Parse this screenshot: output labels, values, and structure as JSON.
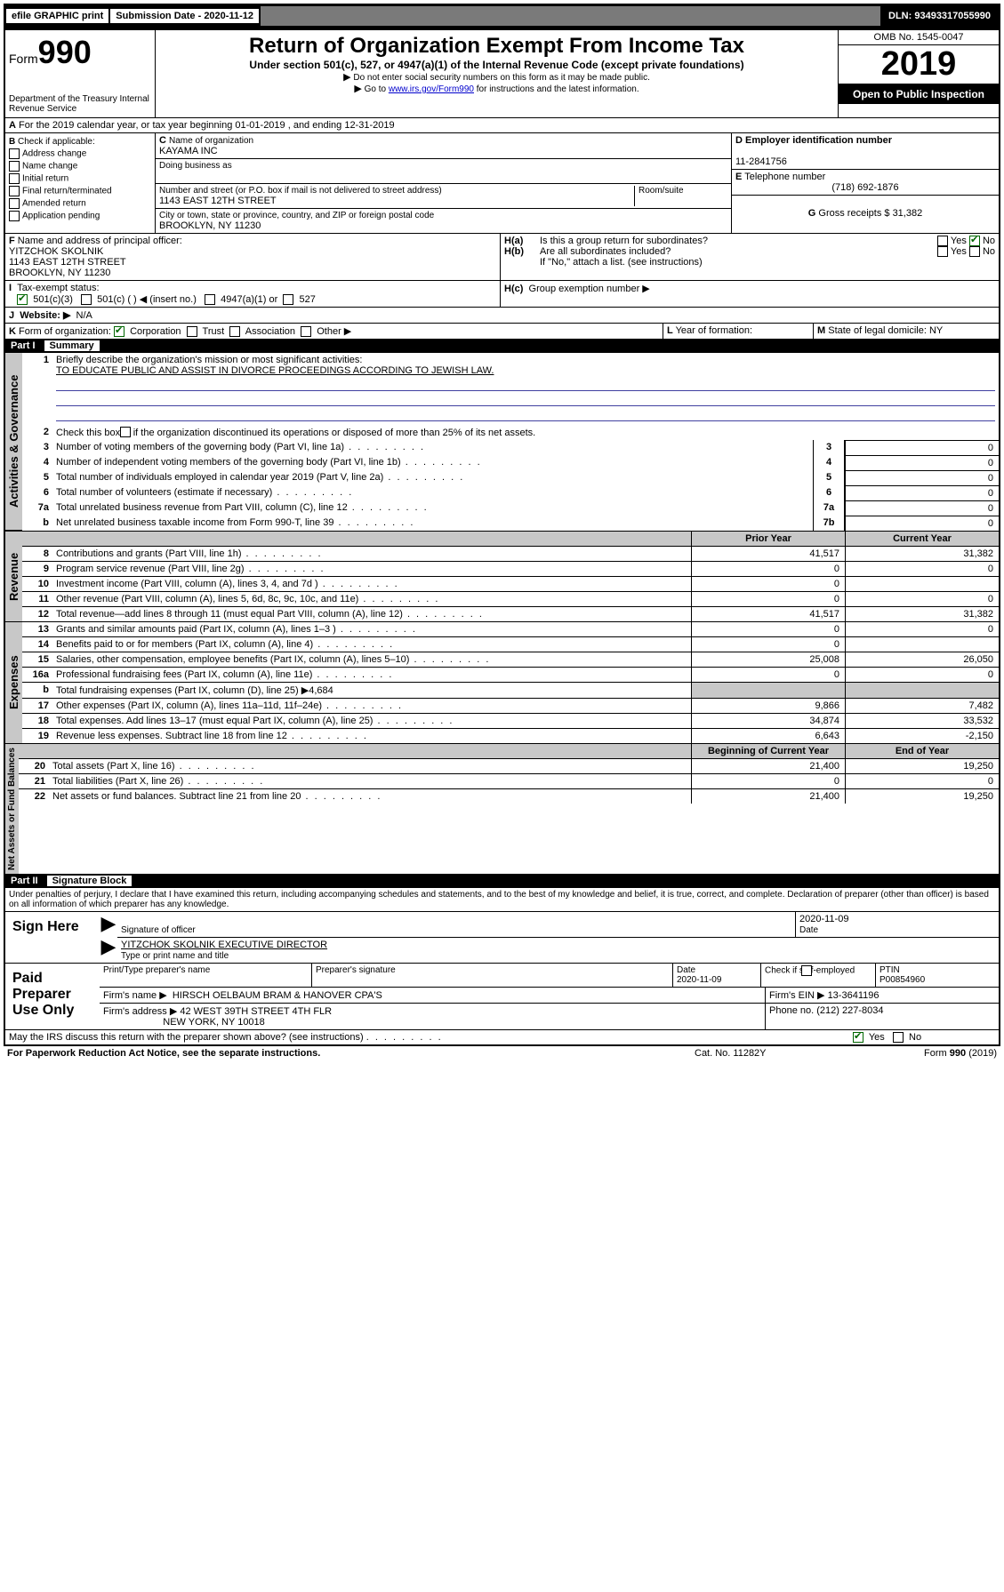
{
  "topbar": {
    "efile": "efile GRAPHIC print",
    "sub_lbl": "Submission Date - 2020-11-12",
    "dln": "DLN: 93493317055990"
  },
  "header": {
    "form": "Form",
    "formno": "990",
    "dept": "Department of the Treasury\nInternal Revenue Service",
    "title": "Return of Organization Exempt From Income Tax",
    "sub": "Under section 501(c), 527, or 4947(a)(1) of the Internal Revenue Code (except private foundations)",
    "note1": "Do not enter social security numbers on this form as it may be made public.",
    "note2_a": "Go to ",
    "note2_link": "www.irs.gov/Form990",
    "note2_b": " for instructions and the latest information.",
    "omb": "OMB No. 1545-0047",
    "year": "2019",
    "open": "Open to Public Inspection"
  },
  "A": {
    "text": "For the 2019 calendar year, or tax year beginning 01-01-2019   , and ending 12-31-2019"
  },
  "B": {
    "hdr": "Check if applicable:",
    "items": [
      "Address change",
      "Name change",
      "Initial return",
      "Final return/terminated",
      "Amended return",
      "Application pending"
    ]
  },
  "C": {
    "lbl": "Name of organization",
    "name": "KAYAMA INC",
    "dba_lbl": "Doing business as",
    "addr_lbl": "Number and street (or P.O. box if mail is not delivered to street address)",
    "room_lbl": "Room/suite",
    "addr": "1143 EAST 12TH STREET",
    "city_lbl": "City or town, state or province, country, and ZIP or foreign postal code",
    "city": "BROOKLYN, NY  11230"
  },
  "D": {
    "lbl": "Employer identification number",
    "val": "11-2841756"
  },
  "E": {
    "lbl": "Telephone number",
    "val": "(718) 692-1876"
  },
  "G": {
    "lbl": "Gross receipts $",
    "val": "31,382"
  },
  "F": {
    "lbl": "Name and address of principal officer:",
    "name": "YITZCHOK SKOLNIK",
    "addr1": "1143 EAST 12TH STREET",
    "addr2": "BROOKLYN, NY  11230"
  },
  "H": {
    "a": "Is this a group return for subordinates?",
    "b": "Are all subordinates included?",
    "b_note": "If \"No,\" attach a list. (see instructions)",
    "c": "Group exemption number ▶",
    "yes": "Yes",
    "no": "No"
  },
  "I": {
    "lbl": "Tax-exempt status:",
    "o1": "501(c)(3)",
    "o2": "501(c) (   ) ◀ (insert no.)",
    "o3": "4947(a)(1) or",
    "o4": "527"
  },
  "J": {
    "lbl": "Website: ▶",
    "val": "N/A"
  },
  "K": {
    "lbl": "Form of organization:",
    "o1": "Corporation",
    "o2": "Trust",
    "o3": "Association",
    "o4": "Other ▶"
  },
  "L": {
    "lbl": "Year of formation:"
  },
  "M": {
    "lbl": "State of legal domicile:",
    "val": "NY"
  },
  "partI": {
    "hdr": "Part I",
    "name": "Summary"
  },
  "summary": {
    "l1_lbl": "Briefly describe the organization's mission or most significant activities:",
    "l1_val": "TO EDUCATE PUBLIC AND ASSIST IN DIVORCE PROCEEDINGS ACCORDING TO JEWISH LAW.",
    "l2": "Check this box ▶        if the organization discontinued its operations or disposed of more than 25% of its net assets.",
    "rows_simple": [
      {
        "n": "3",
        "t": "Number of voting members of the governing body (Part VI, line 1a)",
        "v": "0"
      },
      {
        "n": "4",
        "t": "Number of independent voting members of the governing body (Part VI, line 1b)",
        "v": "0"
      },
      {
        "n": "5",
        "t": "Total number of individuals employed in calendar year 2019 (Part V, line 2a)",
        "v": "0"
      },
      {
        "n": "6",
        "t": "Total number of volunteers (estimate if necessary)",
        "v": "0"
      },
      {
        "n": "7a",
        "t": "Total unrelated business revenue from Part VIII, column (C), line 12",
        "v": "0"
      },
      {
        "n": "b",
        "t": "Net unrelated business taxable income from Form 990-T, line 39",
        "box": "7b",
        "v": "0"
      }
    ],
    "col_prior": "Prior Year",
    "col_curr": "Current Year",
    "rev": [
      {
        "n": "8",
        "t": "Contributions and grants (Part VIII, line 1h)",
        "p": "41,517",
        "c": "31,382"
      },
      {
        "n": "9",
        "t": "Program service revenue (Part VIII, line 2g)",
        "p": "0",
        "c": "0"
      },
      {
        "n": "10",
        "t": "Investment income (Part VIII, column (A), lines 3, 4, and 7d )",
        "p": "0",
        "c": ""
      },
      {
        "n": "11",
        "t": "Other revenue (Part VIII, column (A), lines 5, 6d, 8c, 9c, 10c, and 11e)",
        "p": "0",
        "c": "0"
      },
      {
        "n": "12",
        "t": "Total revenue—add lines 8 through 11 (must equal Part VIII, column (A), line 12)",
        "p": "41,517",
        "c": "31,382"
      }
    ],
    "exp": [
      {
        "n": "13",
        "t": "Grants and similar amounts paid (Part IX, column (A), lines 1–3 )",
        "p": "0",
        "c": "0"
      },
      {
        "n": "14",
        "t": "Benefits paid to or for members (Part IX, column (A), line 4)",
        "p": "0",
        "c": ""
      },
      {
        "n": "15",
        "t": "Salaries, other compensation, employee benefits (Part IX, column (A), lines 5–10)",
        "p": "25,008",
        "c": "26,050"
      },
      {
        "n": "16a",
        "t": "Professional fundraising fees (Part IX, column (A), line 11e)",
        "p": "0",
        "c": "0"
      },
      {
        "n": "b",
        "t": "Total fundraising expenses (Part IX, column (D), line 25) ▶4,684",
        "p": "",
        "c": "",
        "shade": true
      },
      {
        "n": "17",
        "t": "Other expenses (Part IX, column (A), lines 11a–11d, 11f–24e)",
        "p": "9,866",
        "c": "7,482"
      },
      {
        "n": "18",
        "t": "Total expenses. Add lines 13–17 (must equal Part IX, column (A), line 25)",
        "p": "34,874",
        "c": "33,532"
      },
      {
        "n": "19",
        "t": "Revenue less expenses. Subtract line 18 from line 12",
        "p": "6,643",
        "c": "-2,150"
      }
    ],
    "col_beg": "Beginning of Current Year",
    "col_end": "End of Year",
    "na": [
      {
        "n": "20",
        "t": "Total assets (Part X, line 16)",
        "p": "21,400",
        "c": "19,250"
      },
      {
        "n": "21",
        "t": "Total liabilities (Part X, line 26)",
        "p": "0",
        "c": "0"
      },
      {
        "n": "22",
        "t": "Net assets or fund balances. Subtract line 21 from line 20",
        "p": "21,400",
        "c": "19,250"
      }
    ]
  },
  "tabs": {
    "gov": "Activities & Governance",
    "rev": "Revenue",
    "exp": "Expenses",
    "na": "Net Assets or Fund Balances"
  },
  "partII": {
    "hdr": "Part II",
    "name": "Signature Block"
  },
  "sig": {
    "decl": "Under penalties of perjury, I declare that I have examined this return, including accompanying schedules and statements, and to the best of my knowledge and belief, it is true, correct, and complete. Declaration of preparer (other than officer) is based on all information of which preparer has any knowledge.",
    "sign_here": "Sign Here",
    "sig_officer": "Signature of officer",
    "date": "Date",
    "date_val": "2020-11-09",
    "typed": "YITZCHOK SKOLNIK  EXECUTIVE DIRECTOR",
    "typed_lbl": "Type or print name and title",
    "paid": "Paid Preparer Use Only",
    "p_name_lbl": "Print/Type preparer's name",
    "p_sig_lbl": "Preparer's signature",
    "p_date_lbl": "Date",
    "p_date": "2020-11-09",
    "p_check": "Check         if self-employed",
    "ptin_lbl": "PTIN",
    "ptin": "P00854960",
    "firm_lbl": "Firm's name     ▶",
    "firm": "HIRSCH OELBAUM BRAM & HANOVER CPA'S",
    "ein_lbl": "Firm's EIN ▶",
    "ein": "13-3641196",
    "faddr_lbl": "Firm's address ▶",
    "faddr1": "42 WEST 39TH STREET 4TH FLR",
    "faddr2": "NEW YORK, NY  10018",
    "phone_lbl": "Phone no.",
    "phone": "(212) 227-8034"
  },
  "footer": {
    "q": "May the IRS discuss this return with the preparer shown above? (see instructions)",
    "yes": "Yes",
    "no": "No",
    "pra": "For Paperwork Reduction Act Notice, see the separate instructions.",
    "cat": "Cat. No. 11282Y",
    "form": "Form 990 (2019)"
  }
}
